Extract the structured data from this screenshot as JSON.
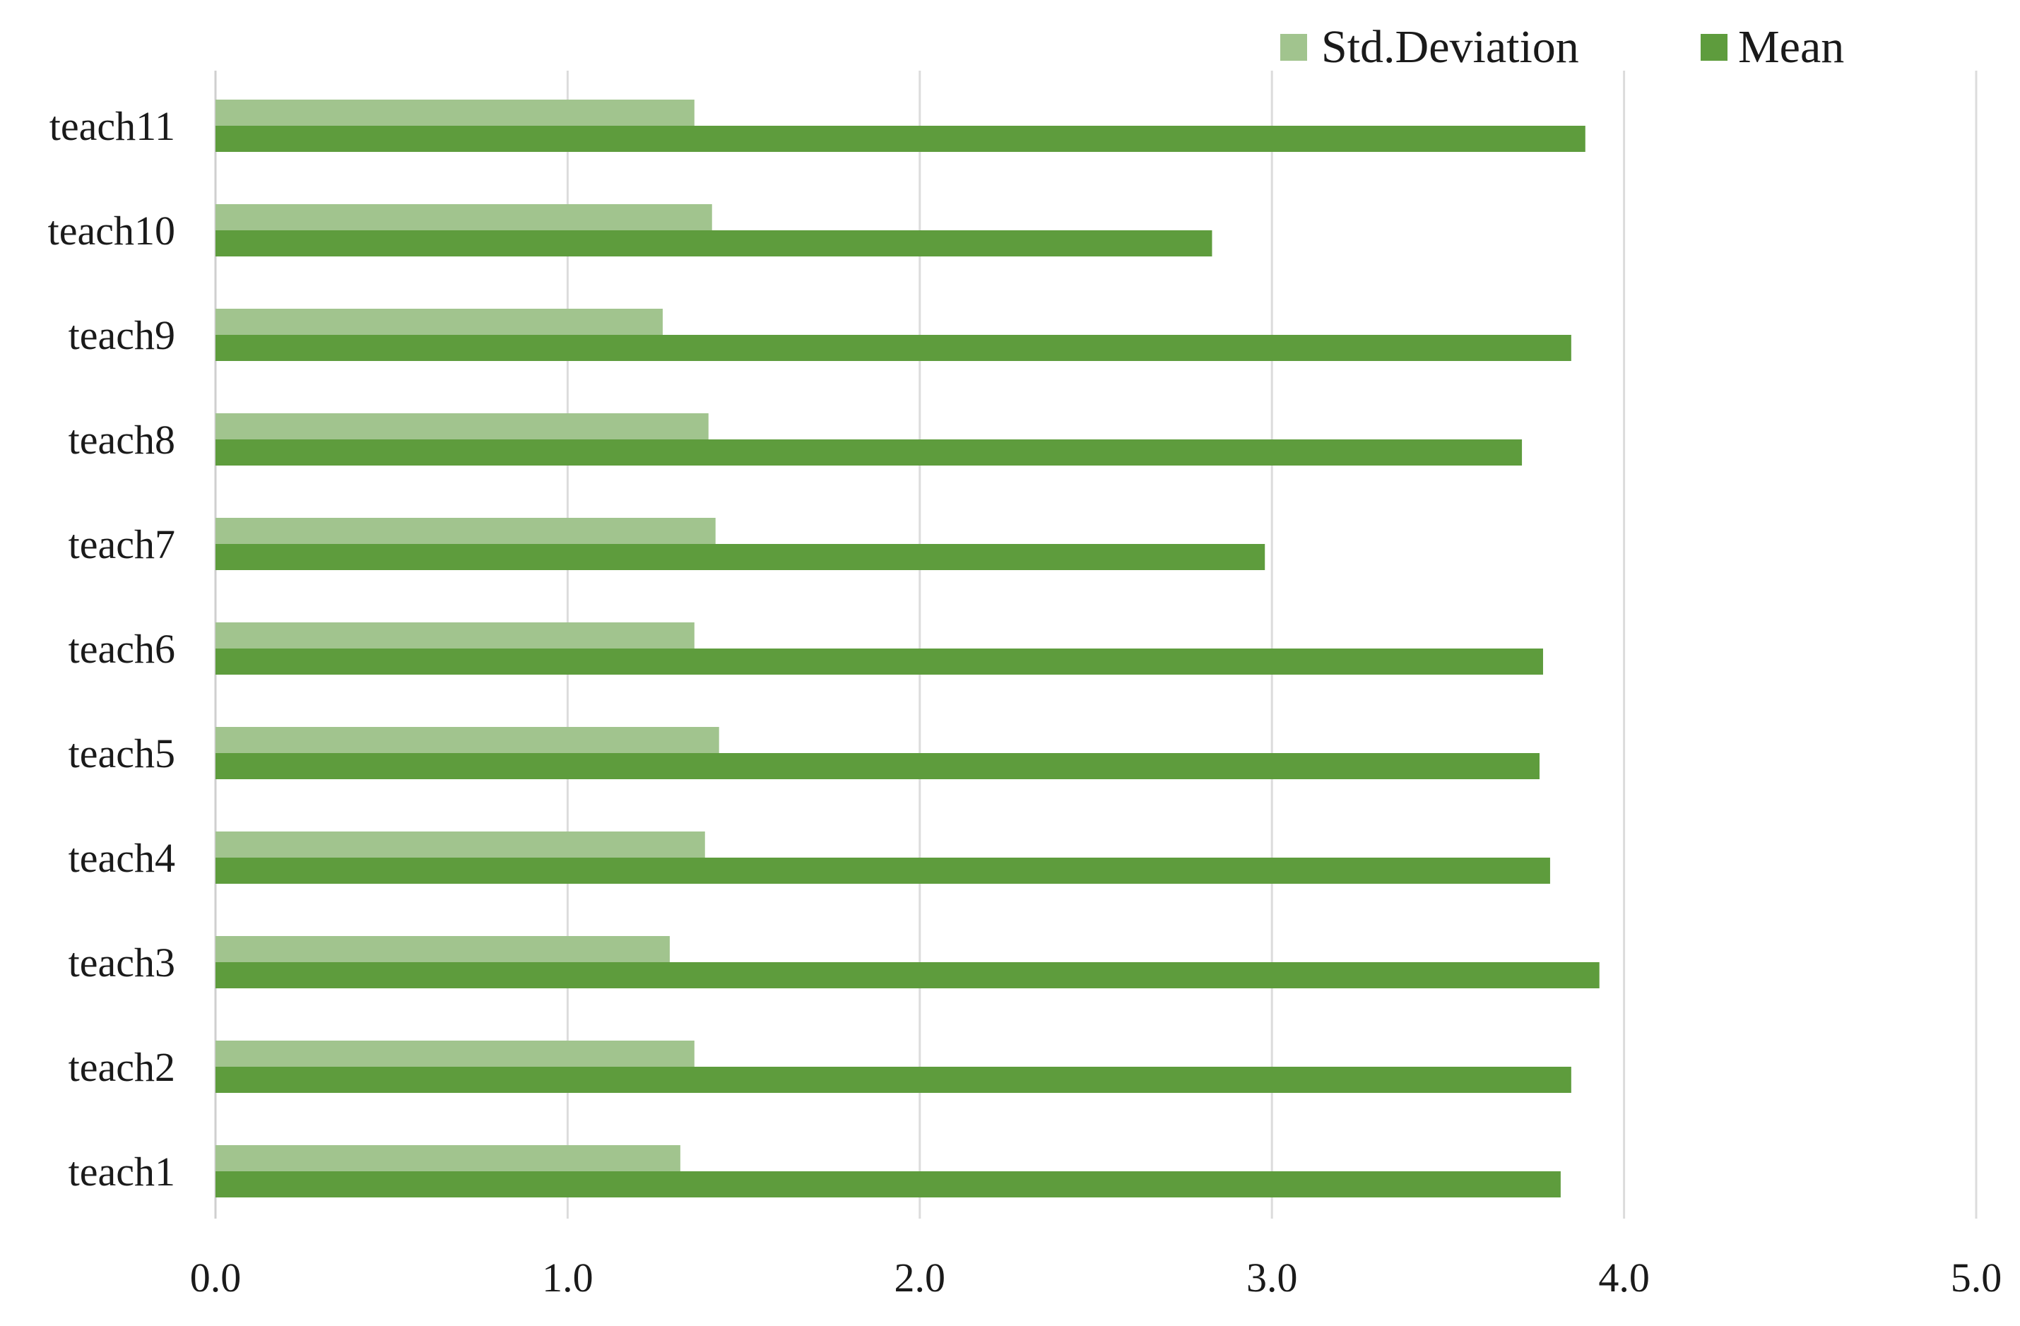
{
  "chart_data": {
    "type": "bar",
    "orientation": "horizontal",
    "categories": [
      "teach11",
      "teach10",
      "teach9",
      "teach8",
      "teach7",
      "teach6",
      "teach5",
      "teach4",
      "teach3",
      "teach2",
      "teach1"
    ],
    "series": [
      {
        "name": "Std.Deviation",
        "color": "#a1c48e",
        "values": [
          1.36,
          1.41,
          1.27,
          1.4,
          1.42,
          1.36,
          1.43,
          1.39,
          1.29,
          1.36,
          1.32
        ]
      },
      {
        "name": "Mean",
        "color": "#5e9c3d",
        "values": [
          3.89,
          2.83,
          3.85,
          3.71,
          2.98,
          3.77,
          3.76,
          3.79,
          3.93,
          3.85,
          3.82
        ]
      }
    ],
    "xlim": [
      0,
      5
    ],
    "xticks": [
      "0.0",
      "1.0",
      "2.0",
      "3.0",
      "4.0",
      "5.0"
    ],
    "grid": "vertical",
    "legend_position": "top-right",
    "title": "",
    "xlabel": "",
    "ylabel": ""
  }
}
